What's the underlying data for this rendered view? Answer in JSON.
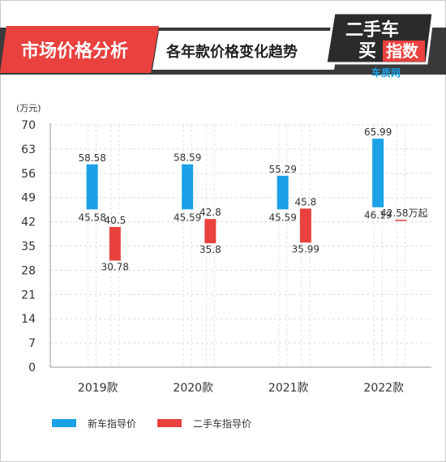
{
  "header": {
    "title": "市场价格分析",
    "subtitle": "各年款价格变化趋势"
  },
  "badge": {
    "line1": "二手车",
    "line2a": "买",
    "line2b": "指数",
    "brand": "车质网"
  },
  "colors": {
    "new_car": "#1aa1e6",
    "used_car": "#e8413e",
    "header_red": "#e8413e",
    "header_dark": "#3a3a3a"
  },
  "chart_data": {
    "type": "bar",
    "unit": "(万元)",
    "ylim": [
      0,
      70
    ],
    "yticks": [
      0,
      7,
      14,
      21,
      28,
      35,
      42,
      49,
      56,
      63,
      70
    ],
    "categories": [
      "2019款",
      "2020款",
      "2021款",
      "2022款"
    ],
    "series": [
      {
        "name": "新车指导价",
        "low": [
          45.58,
          45.59,
          45.59,
          46.19
        ],
        "high": [
          58.58,
          58.59,
          55.29,
          65.99
        ]
      },
      {
        "name": "二手车指导价",
        "low": [
          30.78,
          35.8,
          35.99,
          42.58
        ],
        "high": [
          40.5,
          42.8,
          45.8,
          42.58
        ]
      }
    ],
    "used_labels": [
      "40.5",
      "42.8",
      "45.8",
      "42.58万起"
    ],
    "used_low_labels": [
      "30.78",
      "35.8",
      "35.99",
      ""
    ],
    "new_high_labels": [
      "58.58",
      "58.59",
      "55.29",
      "65.99"
    ],
    "new_low_labels": [
      "45.58",
      "45.59",
      "45.59",
      "46.19"
    ]
  }
}
